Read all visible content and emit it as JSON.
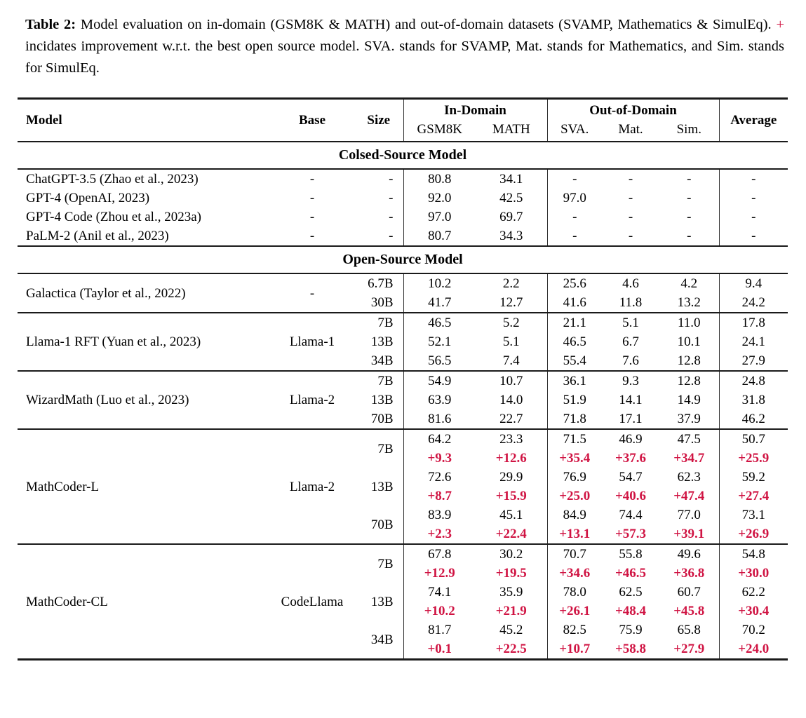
{
  "colors": {
    "delta_red": "#d01443",
    "rule": "#1a1a1a"
  },
  "caption": {
    "label": "Table 2:",
    "text_before_plus": " Model evaluation on in-domain (GSM8K & MATH) and out-of-domain datasets (SVAMP, Mathematics & SimulEq). ",
    "plus": "+",
    "text_after_plus": " incidates improvement w.r.t. the best open source model. SVA. stands for SVAMP, Mat. stands for Mathematics, and Sim. stands for SimulEq."
  },
  "table": {
    "header": {
      "model": "Model",
      "base": "Base",
      "size": "Size",
      "in_domain": "In-Domain",
      "out_of_domain": "Out-of-Domain",
      "average": "Average",
      "sub": [
        "GSM8K",
        "MATH",
        "SVA.",
        "Mat.",
        "Sim."
      ]
    },
    "sections": [
      {
        "title": "Colsed-Source Model",
        "separators": false,
        "groups": [
          {
            "model": "ChatGPT-3.5 (Zhao et al., 2023)",
            "base": "-",
            "rows": [
              {
                "size": "-",
                "values": [
                  "80.8",
                  "34.1",
                  "-",
                  "-",
                  "-",
                  "-"
                ]
              }
            ]
          },
          {
            "model": "GPT-4 (OpenAI, 2023)",
            "base": "-",
            "rows": [
              {
                "size": "-",
                "values": [
                  "92.0",
                  "42.5",
                  "97.0",
                  "-",
                  "-",
                  "-"
                ]
              }
            ]
          },
          {
            "model": "GPT-4 Code (Zhou et al., 2023a)",
            "base": "-",
            "rows": [
              {
                "size": "-",
                "values": [
                  "97.0",
                  "69.7",
                  "-",
                  "-",
                  "-",
                  "-"
                ]
              }
            ]
          },
          {
            "model": "PaLM-2 (Anil et al., 2023)",
            "base": "-",
            "rows": [
              {
                "size": "-",
                "values": [
                  "80.7",
                  "34.3",
                  "-",
                  "-",
                  "-",
                  "-"
                ]
              }
            ]
          }
        ]
      },
      {
        "title": "Open-Source Model",
        "separators": true,
        "groups": [
          {
            "model": "Galactica (Taylor et al., 2022)",
            "base": "-",
            "rows": [
              {
                "size": "6.7B",
                "values": [
                  "10.2",
                  "2.2",
                  "25.6",
                  "4.6",
                  "4.2",
                  "9.4"
                ]
              },
              {
                "size": "30B",
                "values": [
                  "41.7",
                  "12.7",
                  "41.6",
                  "11.8",
                  "13.2",
                  "24.2"
                ]
              }
            ]
          },
          {
            "model": "Llama-1 RFT (Yuan et al., 2023)",
            "base": "Llama-1",
            "rows": [
              {
                "size": "7B",
                "values": [
                  "46.5",
                  "5.2",
                  "21.1",
                  "5.1",
                  "11.0",
                  "17.8"
                ]
              },
              {
                "size": "13B",
                "values": [
                  "52.1",
                  "5.1",
                  "46.5",
                  "6.7",
                  "10.1",
                  "24.1"
                ]
              },
              {
                "size": "34B",
                "values": [
                  "56.5",
                  "7.4",
                  "55.4",
                  "7.6",
                  "12.8",
                  "27.9"
                ]
              }
            ]
          },
          {
            "model": "WizardMath (Luo et al., 2023)",
            "base": "Llama-2",
            "rows": [
              {
                "size": "7B",
                "values": [
                  "54.9",
                  "10.7",
                  "36.1",
                  "9.3",
                  "12.8",
                  "24.8"
                ]
              },
              {
                "size": "13B",
                "values": [
                  "63.9",
                  "14.0",
                  "51.9",
                  "14.1",
                  "14.9",
                  "31.8"
                ]
              },
              {
                "size": "70B",
                "values": [
                  "81.6",
                  "22.7",
                  "71.8",
                  "17.1",
                  "37.9",
                  "46.2"
                ]
              }
            ]
          },
          {
            "model": "MathCoder-L",
            "base": "Llama-2",
            "rows": [
              {
                "size": "7B",
                "values": [
                  "64.2",
                  "23.3",
                  "71.5",
                  "46.9",
                  "47.5",
                  "50.7"
                ],
                "delta": [
                  "+9.3",
                  "+12.6",
                  "+35.4",
                  "+37.6",
                  "+34.7",
                  "+25.9"
                ]
              },
              {
                "size": "13B",
                "values": [
                  "72.6",
                  "29.9",
                  "76.9",
                  "54.7",
                  "62.3",
                  "59.2"
                ],
                "delta": [
                  "+8.7",
                  "+15.9",
                  "+25.0",
                  "+40.6",
                  "+47.4",
                  "+27.4"
                ]
              },
              {
                "size": "70B",
                "values": [
                  "83.9",
                  "45.1",
                  "84.9",
                  "74.4",
                  "77.0",
                  "73.1"
                ],
                "delta": [
                  "+2.3",
                  "+22.4",
                  "+13.1",
                  "+57.3",
                  "+39.1",
                  "+26.9"
                ]
              }
            ]
          },
          {
            "model": "MathCoder-CL",
            "base": "CodeLlama",
            "rows": [
              {
                "size": "7B",
                "values": [
                  "67.8",
                  "30.2",
                  "70.7",
                  "55.8",
                  "49.6",
                  "54.8"
                ],
                "delta": [
                  "+12.9",
                  "+19.5",
                  "+34.6",
                  "+46.5",
                  "+36.8",
                  "+30.0"
                ]
              },
              {
                "size": "13B",
                "values": [
                  "74.1",
                  "35.9",
                  "78.0",
                  "62.5",
                  "60.7",
                  "62.2"
                ],
                "delta": [
                  "+10.2",
                  "+21.9",
                  "+26.1",
                  "+48.4",
                  "+45.8",
                  "+30.4"
                ]
              },
              {
                "size": "34B",
                "values": [
                  "81.7",
                  "45.2",
                  "82.5",
                  "75.9",
                  "65.8",
                  "70.2"
                ],
                "delta": [
                  "+0.1",
                  "+22.5",
                  "+10.7",
                  "+58.8",
                  "+27.9",
                  "+24.0"
                ]
              }
            ]
          }
        ]
      }
    ]
  }
}
